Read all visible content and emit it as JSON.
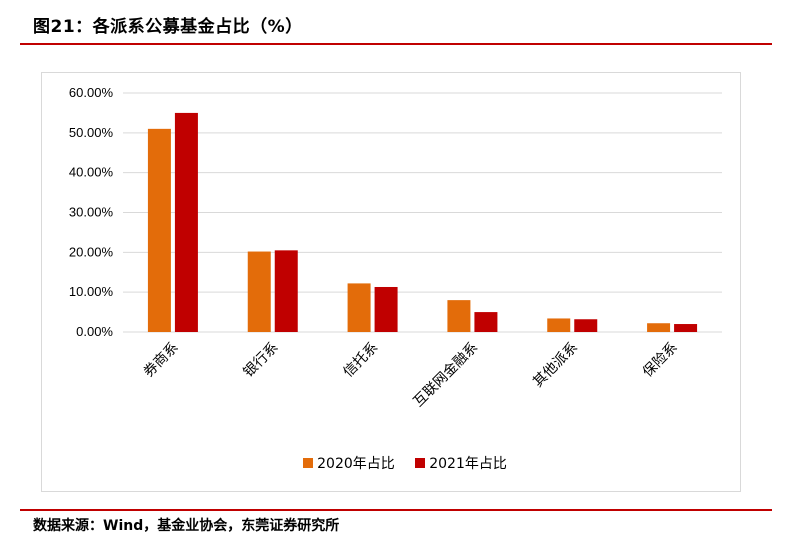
{
  "figure_title": "图21：各派系公募基金占比（%）",
  "source_note": "数据来源：Wind，基金业协会，东莞证券研究所",
  "colors": {
    "accent_rule": "#c00000",
    "series_2020": "#e36c0a",
    "series_2021": "#c00000",
    "grid": "#d9d9d9"
  },
  "chart_data": {
    "type": "bar",
    "categories": [
      "券商系",
      "银行系",
      "信托系",
      "互联网金融系",
      "其他派系",
      "保险系"
    ],
    "series": [
      {
        "name": "2020年占比",
        "values": [
          51.0,
          20.2,
          12.2,
          8.0,
          3.4,
          2.2
        ]
      },
      {
        "name": "2021年占比",
        "values": [
          55.0,
          20.5,
          11.3,
          5.0,
          3.2,
          2.0
        ]
      }
    ],
    "yticks": [
      "0.00%",
      "10.00%",
      "20.00%",
      "30.00%",
      "40.00%",
      "50.00%",
      "60.00%"
    ],
    "ylim": [
      0,
      60
    ],
    "grid": true,
    "legend_position": "bottom"
  }
}
